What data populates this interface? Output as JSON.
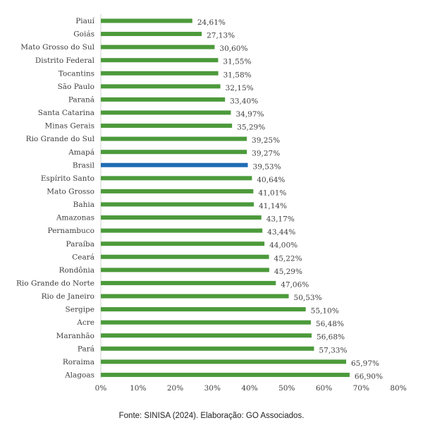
{
  "chart_data": {
    "type": "bar",
    "orientation": "horizontal",
    "categories": [
      "Piauí",
      "Goiás",
      "Mato Grosso do Sul",
      "Distrito Federal",
      "Tocantins",
      "São Paulo",
      "Paraná",
      "Santa Catarina",
      "Minas Gerais",
      "Rio Grande do Sul",
      "Amapá",
      "Brasil",
      "Espírito Santo",
      "Mato Grosso",
      "Bahia",
      "Amazonas",
      "Pernambuco",
      "Paraíba",
      "Ceará",
      "Rondônia",
      "Rio Grande do Norte",
      "Rio de Janeiro",
      "Sergipe",
      "Acre",
      "Maranhão",
      "Pará",
      "Roraima",
      "Alagoas"
    ],
    "values": [
      24.61,
      27.13,
      30.6,
      31.55,
      31.58,
      32.15,
      33.4,
      34.97,
      35.29,
      39.25,
      39.27,
      39.53,
      40.64,
      41.01,
      41.14,
      43.17,
      43.44,
      44.0,
      45.22,
      45.29,
      47.06,
      50.53,
      55.1,
      56.48,
      56.68,
      57.33,
      65.97,
      66.9
    ],
    "value_labels": [
      "24,61%",
      "27,13%",
      "30,60%",
      "31,55%",
      "31,58%",
      "32,15%",
      "33,40%",
      "34,97%",
      "35,29%",
      "39,25%",
      "39,27%",
      "39,53%",
      "40,64%",
      "41,01%",
      "41,14%",
      "43,17%",
      "43,44%",
      "44,00%",
      "45,22%",
      "45,29%",
      "47,06%",
      "50,53%",
      "55,10%",
      "56,48%",
      "56,68%",
      "57,33%",
      "65,97%",
      "66,90%"
    ],
    "highlight_category": "Brasil",
    "xlim": [
      0,
      80
    ],
    "x_ticks": [
      0,
      10,
      20,
      30,
      40,
      50,
      60,
      70,
      80
    ],
    "x_tick_labels": [
      "0%",
      "10%",
      "20%",
      "30%",
      "40%",
      "50%",
      "60%",
      "70%",
      "80%"
    ],
    "grid": false,
    "colors": {
      "bar": "#4c9a3b",
      "highlight": "#1f6bb5",
      "axis": "#d0d0d0",
      "text": "#404040"
    }
  },
  "source_note": "Fonte: SINISA (2024). Elaboração: GO Associados."
}
